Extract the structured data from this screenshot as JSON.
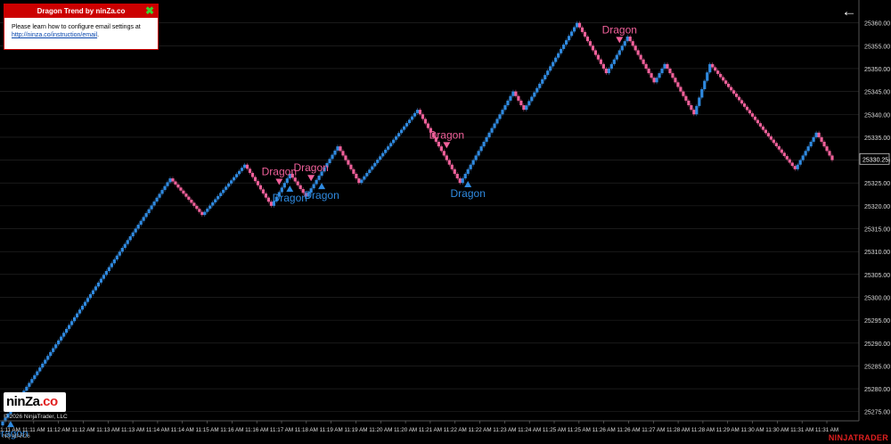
{
  "popup": {
    "title": "Dragon Trend by ninZa.co",
    "line1": "Please learn how to configure email settings at",
    "link": "http://ninza.co/instruction/email"
  },
  "footer": {
    "logo_main": "ninZa",
    "logo_dot": ".co",
    "copyright": "© 2026 NinjaTrader, LLC",
    "instrument": "NQ MAR26",
    "brand": "NINJATRADER"
  },
  "colors": {
    "up": "#2f8ae0",
    "down": "#f0609a",
    "grid": "#2a2a2a",
    "background": "#000000"
  },
  "chart_data": {
    "type": "renko",
    "ylim": [
      25273,
      25365
    ],
    "y_ticks": [
      25275.0,
      25280.0,
      25285.0,
      25290.0,
      25295.0,
      25300.0,
      25305.0,
      25310.0,
      25315.0,
      25320.0,
      25325.0,
      25330.0,
      25335.0,
      25340.0,
      25345.0,
      25350.0,
      25355.0,
      25360.0
    ],
    "last_price_label": "25330.25",
    "x_labels": [
      "11:11 AM",
      "11:11 AM",
      "11:12 AM",
      "11:12 AM",
      "11:13 AM",
      "11:13 AM",
      "11:14 AM",
      "11:14 AM",
      "11:15 AM",
      "11:16 AM",
      "11:16 AM",
      "11:17 AM",
      "11:18 AM",
      "11:19 AM",
      "11:19 AM",
      "11:20 AM",
      "11:20 AM",
      "11:21 AM",
      "11:22 AM",
      "11:22 AM",
      "11:23 AM",
      "11:24 AM",
      "11:25 AM",
      "11:25 AM",
      "11:26 AM",
      "11:26 AM",
      "11:27 AM",
      "11:28 AM",
      "11:28 AM",
      "11:29 AM",
      "11:30 AM",
      "11:30 AM",
      "11:31 AM",
      "11:31 AM"
    ],
    "path": [
      {
        "to": 25326,
        "steps": 64
      },
      {
        "to": 25318,
        "steps": 12
      },
      {
        "to": 25329,
        "steps": 16
      },
      {
        "to": 25320,
        "steps": 10
      },
      {
        "to": 25327,
        "steps": 7
      },
      {
        "to": 25322,
        "steps": 6
      },
      {
        "to": 25333,
        "steps": 12
      },
      {
        "to": 25325,
        "steps": 8
      },
      {
        "to": 25341,
        "steps": 22
      },
      {
        "to": 25334,
        "steps": 7
      },
      {
        "to": 25325,
        "steps": 9
      },
      {
        "to": 25345,
        "steps": 20
      },
      {
        "to": 25341,
        "steps": 4
      },
      {
        "to": 25360,
        "steps": 20
      },
      {
        "to": 25349,
        "steps": 11
      },
      {
        "to": 25357,
        "steps": 8
      },
      {
        "to": 25347,
        "steps": 10
      },
      {
        "to": 25351,
        "steps": 4
      },
      {
        "to": 25340,
        "steps": 11
      },
      {
        "to": 25351,
        "steps": 6
      },
      {
        "to": 25328,
        "steps": 32
      },
      {
        "to": 25336,
        "steps": 8
      },
      {
        "to": 25330,
        "steps": 6
      }
    ],
    "signals": [
      {
        "type": "buy",
        "text": "Dragon",
        "bar": 3
      },
      {
        "type": "sell",
        "text": "Dragon",
        "bar": 104
      },
      {
        "type": "buy",
        "text": "Dragon",
        "bar": 108
      },
      {
        "type": "sell",
        "text": "Dragon",
        "bar": 116
      },
      {
        "type": "buy",
        "text": "Dragon",
        "bar": 120
      },
      {
        "type": "sell",
        "text": "Dragon",
        "bar": 167
      },
      {
        "type": "buy",
        "text": "Dragon",
        "bar": 175
      },
      {
        "type": "sell",
        "text": "Dragon",
        "bar": 232
      }
    ]
  }
}
